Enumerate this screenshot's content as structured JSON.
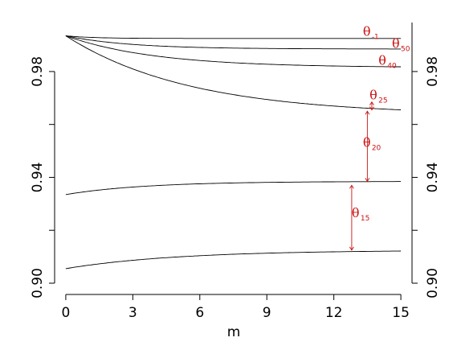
{
  "chart_data": {
    "type": "line",
    "title": "",
    "xlabel": "m",
    "ylabel": "",
    "xlim": [
      -0.5,
      15.5
    ],
    "ylim": [
      0.9,
      0.997
    ],
    "x_ticks": [
      0,
      3,
      6,
      9,
      12,
      15
    ],
    "y_ticks": [
      0.9,
      0.94,
      0.98
    ],
    "y_tick_labels_left": [
      "0.90",
      "0.94",
      "0.98"
    ],
    "y_tick_labels_right": [
      "0.90",
      "0.94",
      "0.98"
    ],
    "minor_y_ticks": [
      0.92,
      0.96
    ],
    "grid": false,
    "series": [
      {
        "name": "θ-1",
        "sym": "θ",
        "sub": "-1",
        "y0": 0.9935,
        "yinf": 0.9925,
        "k": 0.8
      },
      {
        "name": "θ50",
        "sym": "θ",
        "sub": "50",
        "y0": 0.9935,
        "yinf": 0.9885,
        "k": 0.35
      },
      {
        "name": "θ40",
        "sym": "θ",
        "sub": "40",
        "y0": 0.9935,
        "yinf": 0.9815,
        "k": 0.25
      },
      {
        "name": "θ25",
        "sym": "θ",
        "sub": "25",
        "y0": 0.9935,
        "yinf": 0.9635,
        "k": 0.18
      },
      {
        "name": "θ20",
        "sym": "θ",
        "sub": "20",
        "y0": 0.9335,
        "yinf": 0.9385,
        "k": 0.28
      },
      {
        "name": "θ15",
        "sym": "θ",
        "sub": "15",
        "y0": 0.9055,
        "yinf": 0.9125,
        "k": 0.2
      }
    ],
    "annotations": [
      {
        "sym": "θ",
        "sub": "-1",
        "x": 13.3,
        "y": 0.9935
      },
      {
        "sym": "θ",
        "sub": "50",
        "x": 14.6,
        "y": 0.989
      },
      {
        "sym": "θ",
        "sub": "40",
        "x": 14.0,
        "y": 0.9825
      },
      {
        "sym": "θ",
        "sub": "25",
        "x": 13.6,
        "y": 0.9695
      },
      {
        "sym": "θ",
        "sub": "20",
        "x": 13.3,
        "y": 0.9515
      },
      {
        "sym": "θ",
        "sub": "15",
        "x": 12.8,
        "y": 0.925
      }
    ],
    "arrows": [
      {
        "x": 13.7,
        "y1": 0.9655,
        "y2": 0.9685
      },
      {
        "x": 13.5,
        "y1": 0.9385,
        "y2": 0.965
      },
      {
        "x": 12.8,
        "y1": 0.9125,
        "y2": 0.937
      }
    ]
  },
  "colors": {
    "curve": "#000000",
    "annotation": "#cc1111",
    "axis": "#000000"
  }
}
